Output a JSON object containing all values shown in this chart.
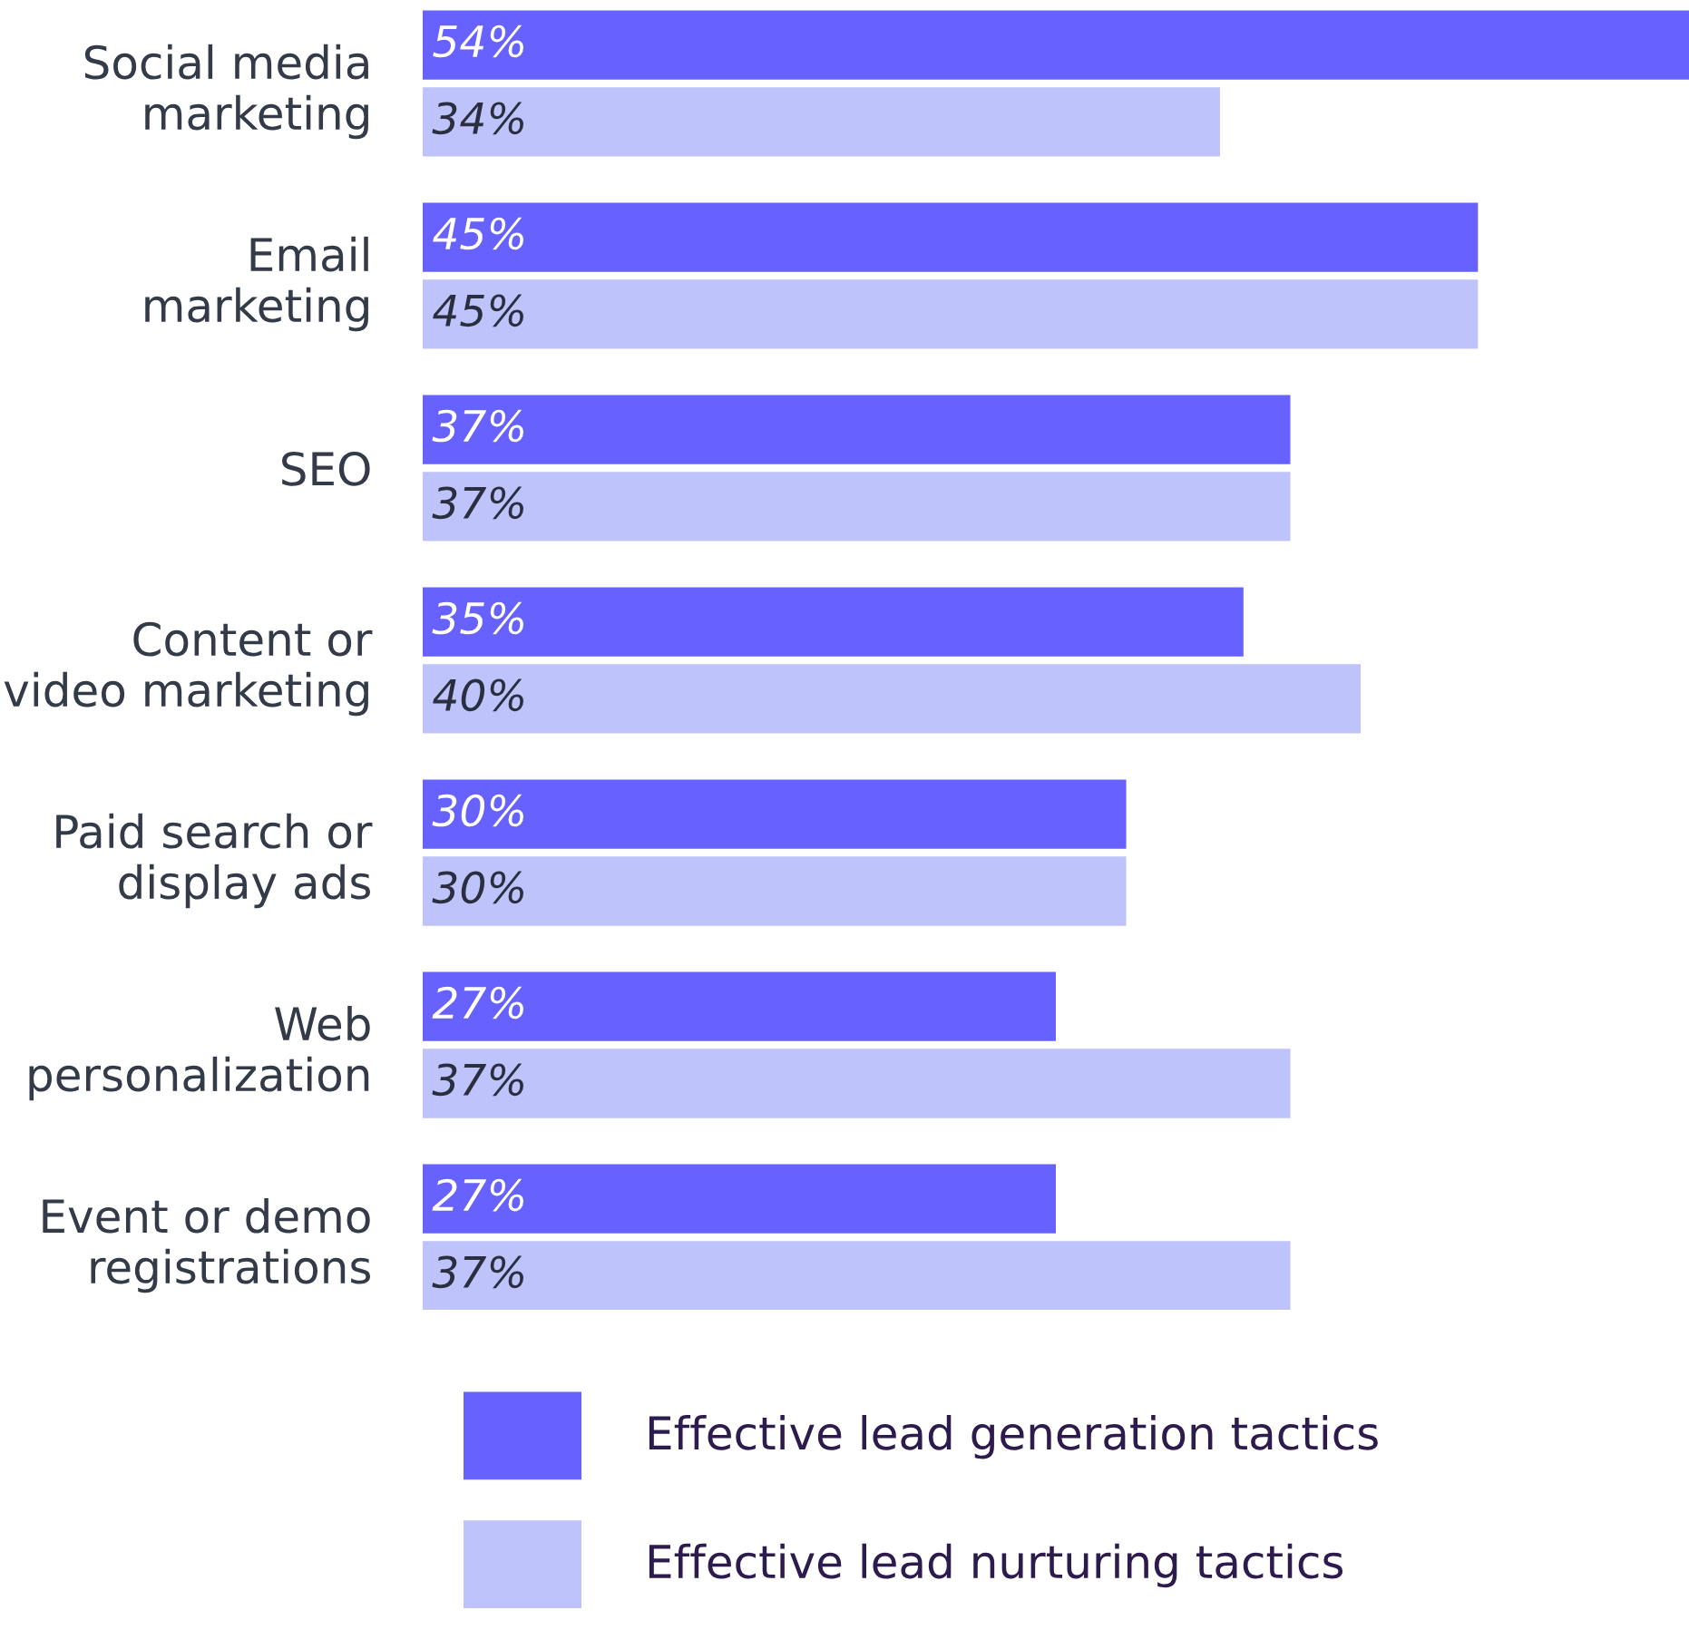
{
  "chart_data": {
    "type": "bar",
    "orientation": "horizontal",
    "categories": [
      "Social media\nmarketing",
      "Email\nmarketing",
      "SEO",
      "Content or\nvideo marketing",
      "Paid search or\ndisplay ads",
      "Web\npersonalization",
      "Event or demo\nregistrations"
    ],
    "series": [
      {
        "name": "Effective lead generation tactics",
        "color": "#6661ff",
        "values": [
          54,
          45,
          37,
          35,
          30,
          27,
          27
        ],
        "value_labels": [
          "54%",
          "45%",
          "37%",
          "35%",
          "30%",
          "27%",
          "27%"
        ]
      },
      {
        "name": "Effective lead nurturing tactics",
        "color": "#bfc3fc",
        "values": [
          34,
          45,
          37,
          40,
          30,
          37,
          37
        ],
        "value_labels": [
          "34%",
          "45%",
          "37%",
          "40%",
          "30%",
          "37%",
          "37%"
        ]
      }
    ],
    "legend": "bottom",
    "grid": false
  }
}
